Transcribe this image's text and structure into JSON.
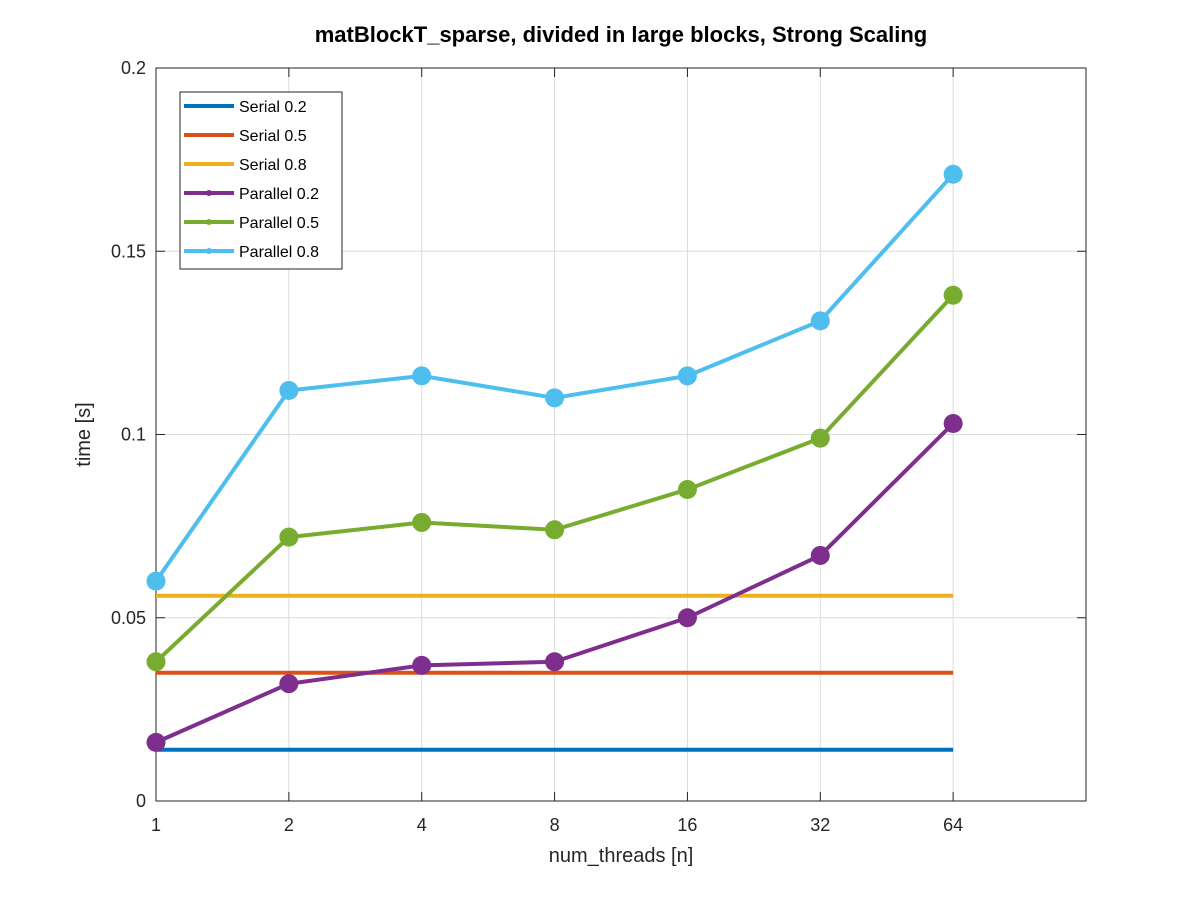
{
  "chart_data": {
    "type": "line",
    "title": "matBlockT_sparse, divided in large blocks, Strong Scaling",
    "xlabel": "num_threads [n]",
    "ylabel": "time [s]",
    "x_scale": "log2",
    "x_ticks": [
      1,
      2,
      4,
      8,
      16,
      32,
      64
    ],
    "x_tick_labels": [
      "1",
      "2",
      "4",
      "8",
      "16",
      "32",
      "64"
    ],
    "xlim": [
      1,
      128
    ],
    "ylim": [
      0,
      0.2
    ],
    "y_ticks": [
      0,
      0.05,
      0.1,
      0.15,
      0.2
    ],
    "y_tick_labels": [
      "0",
      "0.05",
      "0.1",
      "0.15",
      "0.2"
    ],
    "grid": true,
    "legend_position": "top-left",
    "x": [
      1,
      2,
      4,
      8,
      16,
      32,
      64
    ],
    "series": [
      {
        "name": "Serial 0.2",
        "color": "#0072BD",
        "markers": false,
        "values": [
          0.014,
          0.014,
          0.014,
          0.014,
          0.014,
          0.014,
          0.014
        ]
      },
      {
        "name": "Serial 0.5",
        "color": "#D95319",
        "markers": false,
        "values": [
          0.035,
          0.035,
          0.035,
          0.035,
          0.035,
          0.035,
          0.035
        ]
      },
      {
        "name": "Serial 0.8",
        "color": "#EDB120",
        "markers": false,
        "values": [
          0.056,
          0.056,
          0.056,
          0.056,
          0.056,
          0.056,
          0.056
        ]
      },
      {
        "name": "Parallel 0.2",
        "color": "#7E2F8E",
        "markers": true,
        "values": [
          0.016,
          0.032,
          0.037,
          0.038,
          0.05,
          0.067,
          0.103
        ]
      },
      {
        "name": "Parallel 0.5",
        "color": "#77AC30",
        "markers": true,
        "values": [
          0.038,
          0.072,
          0.076,
          0.074,
          0.085,
          0.099,
          0.138
        ]
      },
      {
        "name": "Parallel 0.8",
        "color": "#4DBEEE",
        "markers": true,
        "values": [
          0.06,
          0.112,
          0.116,
          0.11,
          0.116,
          0.131,
          0.171
        ]
      }
    ]
  }
}
